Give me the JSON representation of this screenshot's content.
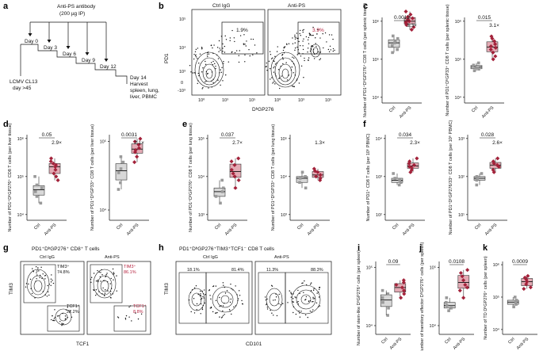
{
  "labels": {
    "a": "a",
    "b": "b",
    "c": "c",
    "d": "d",
    "e": "e",
    "f": "f",
    "g": "g",
    "h": "h",
    "i": "i",
    "j": "j",
    "k": "k"
  },
  "panel_a": {
    "antibody": "Anti-PS antibody",
    "dose": "(200 µg IP)",
    "days": [
      "Day 0",
      "Day 3",
      "Day 6",
      "Day 9",
      "Day 12"
    ],
    "harvest_day": "Day 14",
    "harvest": [
      "Harvest",
      "spleen, lung,",
      "liver, PBMC"
    ],
    "infection": [
      "LCMV CL13",
      "day >45"
    ]
  },
  "panel_b": {
    "groups": [
      "Ctrl IgG",
      "Anti-PS"
    ],
    "percents": [
      "1.9%",
      "3.9%"
    ],
    "ylabel": "PD1",
    "xlabel": "DᵇGP276",
    "ticks": [
      "10⁵",
      "10⁴",
      "10³",
      "0",
      "-10³"
    ],
    "xticks": [
      "10⁰",
      "10³",
      "10⁵"
    ]
  },
  "panel_g": {
    "title": "PD1⁺DᵇGP276⁺ CD8⁺ T cells",
    "groups": [
      "Ctrl IgG",
      "Anti-PS"
    ],
    "gates": [
      {
        "label": "TIM3⁺",
        "ctrl": "74.8%",
        "anti": "86.1%"
      },
      {
        "label": "TCF1⁺",
        "ctrl": "22.2%",
        "anti": "8.8%"
      }
    ],
    "ylabel": "TIM3",
    "xlabel": "TCF1"
  },
  "panel_h": {
    "title": "PD1⁺DᵇGP276⁺TIM3⁺TCF1⁻ CD8 T cells",
    "groups": [
      "Ctrl IgG",
      "Anti-PS"
    ],
    "ctrl_percents": [
      "18.1%",
      "81.4%"
    ],
    "anti_percents": [
      "11.3%",
      "88.3%"
    ],
    "ylabel": "TIM3",
    "xlabel": "CD101"
  },
  "chart_data": [
    {
      "panel": "c",
      "type": "box",
      "ylabel": "Number of PD1⁺DᵇGP276⁺ CD8 T cells (per splenic tissue)",
      "categories": [
        "Ctrl",
        "Anti-PS"
      ],
      "pvalue": "0.0012",
      "fold": "3.3×",
      "yticks": [
        "10⁴",
        "10⁵",
        "10⁶"
      ],
      "log": true,
      "ctrl": [
        410000.0,
        270000.0,
        350000.0,
        180000.0,
        230000.0,
        300000.0,
        150000.0
      ],
      "anti": [
        900000.0,
        1200000.0,
        1500000.0,
        600000.0,
        800000.0,
        1100000.0,
        1800000.0,
        700000.0,
        1000000.0,
        1300000.0,
        950000.0
      ]
    },
    {
      "panel": "c2",
      "type": "box",
      "ylabel": "Number of PD1⁺DᵇGP33⁺ CD8 T cells (per splenic tissue)",
      "categories": [
        "Ctrl",
        "Anti-PS"
      ],
      "pvalue": "0.015",
      "fold": "3.1×",
      "yticks": [
        "10⁴",
        "10⁵",
        "10⁶"
      ],
      "log": true,
      "ctrl": [
        50000.0,
        60000.0,
        70000.0,
        80000.0,
        65000.0,
        55000.0
      ],
      "anti": [
        120000.0,
        200000.0,
        300000.0,
        150000.0,
        250000.0,
        400000.0,
        180000.0,
        100000.0,
        220000.0,
        350000.0
      ]
    },
    {
      "panel": "d",
      "type": "box",
      "ylabel": "Number of PD1⁺DᵇGP276⁺ CD8 T cells (per liver tissue)",
      "categories": [
        "Ctrl",
        "Anti-PS"
      ],
      "pvalue": "0.05",
      "fold": "2.9×",
      "yticks": [
        "10⁴",
        "10⁵",
        "10⁶"
      ],
      "log": true,
      "ctrl": [
        30000.0,
        60000.0,
        100000.0,
        40000.0,
        20000.0,
        50000.0
      ],
      "anti": [
        150000.0,
        200000.0,
        300000.0,
        120000.0,
        80000.0,
        250000.0,
        180000.0,
        100000.0,
        220000.0
      ]
    },
    {
      "panel": "d2",
      "type": "box",
      "ylabel": "Number of PD1⁺DᵇGP33⁺ CD8 T cells (per liver tissue)",
      "categories": [
        "Ctrl",
        "Anti-PS"
      ],
      "pvalue": "0.0031",
      "fold": "2.1×",
      "yticks": [
        "10⁴",
        "10⁵"
      ],
      "log": true,
      "ctrl": [
        25000.0,
        35000.0,
        50000.0,
        60000.0,
        20000.0,
        40000.0
      ],
      "anti": [
        60000.0,
        80000.0,
        100000.0,
        70000.0,
        90000.0,
        50000.0,
        110000.0,
        75000.0
      ]
    },
    {
      "panel": "e",
      "type": "box",
      "ylabel": "Number of PD1⁺DᵇGP276⁺ CD8 T cells (per lung tissue)",
      "categories": [
        "Ctrl",
        "Anti-PS"
      ],
      "pvalue": "0.037",
      "fold": "2.7×",
      "yticks": [
        "10³",
        "10⁴",
        "10⁵"
      ],
      "log": true,
      "ctrl": [
        3000.0,
        5000.0,
        8000.0,
        2000.0,
        4000.0
      ],
      "anti": [
        10000.0,
        20000.0,
        30000.0,
        8000.0,
        15000.0,
        25000.0,
        5000.0,
        12000.0
      ]
    },
    {
      "panel": "e2",
      "type": "box",
      "ylabel": "Number of PD1⁺DᵇGP33⁺ CD8 T cells (per lung tissue)",
      "categories": [
        "Ctrl",
        "Anti-PS"
      ],
      "fold": "1.3×",
      "yticks": [
        "10³",
        "10⁴",
        "10⁵"
      ],
      "log": true,
      "ctrl": [
        7000.0,
        10000.0,
        13000.0,
        5000.0,
        9000.0
      ],
      "anti": [
        10000.0,
        13000.0,
        16000.0,
        8000.0,
        11000.0,
        14000.0,
        9000.0
      ]
    },
    {
      "panel": "f",
      "type": "box",
      "ylabel": "Number of PD1⁺ CD8 T cells (per 10⁶ PBMC)",
      "categories": [
        "Ctrl",
        "Anti-PS"
      ],
      "pvalue": "0.034",
      "fold": "2.3×",
      "yticks": [
        "10²",
        "10³",
        "10⁴"
      ],
      "log": true,
      "ctrl": [
        700,
        900,
        1200,
        600,
        800
      ],
      "anti": [
        1500,
        2000,
        2500,
        1800,
        3000,
        1300,
        2200,
        1700
      ]
    },
    {
      "panel": "f2",
      "type": "box",
      "ylabel": "Number of PD1⁺DᵇGP276/33⁺ CD8 T cells (per 10⁶ PBMC)",
      "categories": [
        "Ctrl",
        "Anti-PS"
      ],
      "pvalue": "0.028",
      "fold": "2.6×",
      "yticks": [
        "10¹",
        "10²",
        "10³"
      ],
      "log": true,
      "ctrl": [
        80,
        100,
        120,
        60,
        90
      ],
      "anti": [
        150,
        200,
        250,
        180,
        300,
        130,
        220
      ]
    },
    {
      "panel": "i",
      "type": "box",
      "ylabel": "Number of stem-like DᵇGP276⁺ cells (per spleen)",
      "categories": [
        "Ctrl",
        "Anti-PS"
      ],
      "pvalue": "0.09",
      "yticks": [
        "10⁴",
        "10⁵"
      ],
      "log": true,
      "ctrl": [
        20000.0,
        30000.0,
        40000.0,
        15000.0,
        25000.0,
        35000.0
      ],
      "anti": [
        30000.0,
        45000.0,
        60000.0,
        35000.0,
        50000.0,
        40000.0,
        55000.0
      ]
    },
    {
      "panel": "j",
      "type": "box",
      "ylabel": "Number of transitory effector DᵇGP276⁺ cells (per spleen)",
      "categories": [
        "Ctrl",
        "Anti-PS"
      ],
      "pvalue": "0.0108",
      "yticks": [
        "10⁴",
        "10⁵"
      ],
      "log": true,
      "ctrl": [
        20000.0,
        25000.0,
        30000.0,
        18000.0,
        22000.0
      ],
      "anti": [
        40000.0,
        60000.0,
        80000.0,
        50000.0,
        70000.0,
        30000.0,
        90000.0,
        45000.0
      ]
    },
    {
      "panel": "k",
      "type": "box",
      "ylabel": "Number of TD DᵇGP276⁺ cells (per spleen)",
      "categories": [
        "Ctrl",
        "Anti-PS"
      ],
      "pvalue": "0.0009",
      "yticks": [
        "10⁴",
        "10⁵",
        "10⁶"
      ],
      "log": true,
      "ctrl": [
        60000.0,
        80000.0,
        100000.0,
        50000.0,
        70000.0
      ],
      "anti": [
        200000.0,
        300000.0,
        400000.0,
        250000.0,
        350000.0,
        180000.0,
        450000.0
      ]
    }
  ],
  "colors": {
    "ctrl": "#999999",
    "anti": "#a3223a",
    "anti_box": "#e3aab4",
    "red_text": "#b51f3c"
  }
}
